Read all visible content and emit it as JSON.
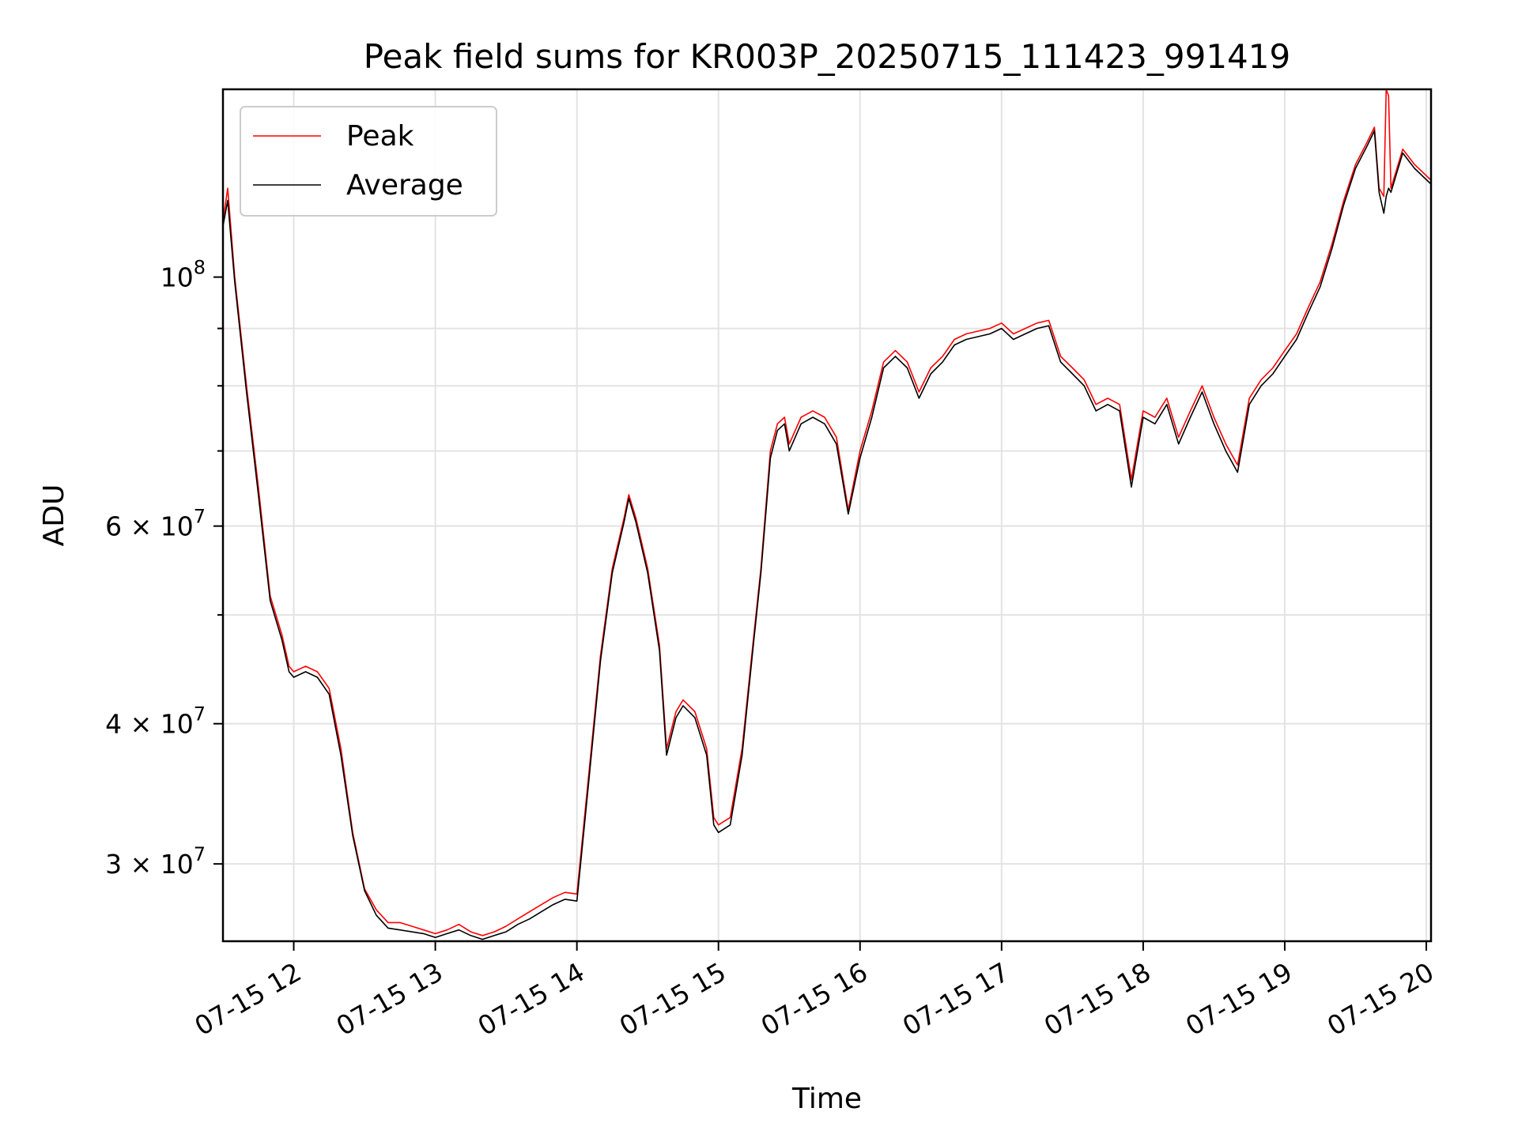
{
  "chart_data": {
    "type": "line",
    "title": "Peak field sums for KR003P_20250715_111423_991419",
    "xlabel": "Time",
    "ylabel": "ADU",
    "yscale": "log",
    "x_range": [
      "07-15 11:30",
      "07-15 20:02"
    ],
    "ylim": [
      25600000,
      147000000
    ],
    "x_ticks": [
      {
        "x": "07-15 12:00",
        "label": "07-15 12"
      },
      {
        "x": "07-15 13:00",
        "label": "07-15 13"
      },
      {
        "x": "07-15 14:00",
        "label": "07-15 14"
      },
      {
        "x": "07-15 15:00",
        "label": "07-15 15"
      },
      {
        "x": "07-15 16:00",
        "label": "07-15 16"
      },
      {
        "x": "07-15 17:00",
        "label": "07-15 17"
      },
      {
        "x": "07-15 18:00",
        "label": "07-15 18"
      },
      {
        "x": "07-15 19:00",
        "label": "07-15 19"
      },
      {
        "x": "07-15 20:00",
        "label": "07-15 20"
      }
    ],
    "y_ticks": [
      {
        "value": 30000000,
        "label": "3 × 10",
        "exp": "7"
      },
      {
        "value": 40000000,
        "label": "4 × 10",
        "exp": "7"
      },
      {
        "value": 60000000,
        "label": "6 × 10",
        "exp": "7"
      },
      {
        "value": 100000000,
        "label": "10",
        "exp": "8"
      }
    ],
    "grid": true,
    "legend_position": "top-left",
    "series": [
      {
        "name": "Peak",
        "color": "#ff0000",
        "points": [
          [
            "07-15 11:30",
            112000000
          ],
          [
            "07-15 11:32",
            120000000
          ],
          [
            "07-15 11:35",
            100000000
          ],
          [
            "07-15 11:40",
            80000000
          ],
          [
            "07-15 11:45",
            65000000
          ],
          [
            "07-15 11:50",
            52000000
          ],
          [
            "07-15 11:55",
            48000000
          ],
          [
            "07-15 11:58",
            45000000
          ],
          [
            "07-15 12:00",
            44500000
          ],
          [
            "07-15 12:05",
            45000000
          ],
          [
            "07-15 12:10",
            44500000
          ],
          [
            "07-15 12:15",
            43000000
          ],
          [
            "07-15 12:20",
            38000000
          ],
          [
            "07-15 12:25",
            32000000
          ],
          [
            "07-15 12:30",
            28500000
          ],
          [
            "07-15 12:35",
            27300000
          ],
          [
            "07-15 12:40",
            26600000
          ],
          [
            "07-15 12:45",
            26600000
          ],
          [
            "07-15 12:50",
            26400000
          ],
          [
            "07-15 12:55",
            26200000
          ],
          [
            "07-15 13:00",
            26000000
          ],
          [
            "07-15 13:05",
            26200000
          ],
          [
            "07-15 13:10",
            26500000
          ],
          [
            "07-15 13:15",
            26100000
          ],
          [
            "07-15 13:20",
            25900000
          ],
          [
            "07-15 13:25",
            26100000
          ],
          [
            "07-15 13:30",
            26400000
          ],
          [
            "07-15 13:35",
            26800000
          ],
          [
            "07-15 13:40",
            27200000
          ],
          [
            "07-15 13:45",
            27600000
          ],
          [
            "07-15 13:50",
            28000000
          ],
          [
            "07-15 13:55",
            28300000
          ],
          [
            "07-15 14:00",
            28200000
          ],
          [
            "07-15 14:05",
            36000000
          ],
          [
            "07-15 14:10",
            46000000
          ],
          [
            "07-15 14:15",
            55000000
          ],
          [
            "07-15 14:20",
            61000000
          ],
          [
            "07-15 14:22",
            64000000
          ],
          [
            "07-15 14:25",
            61000000
          ],
          [
            "07-15 14:30",
            55000000
          ],
          [
            "07-15 14:35",
            47000000
          ],
          [
            "07-15 14:38",
            38000000
          ],
          [
            "07-15 14:42",
            41000000
          ],
          [
            "07-15 14:45",
            42000000
          ],
          [
            "07-15 14:50",
            41000000
          ],
          [
            "07-15 14:55",
            38000000
          ],
          [
            "07-15 14:58",
            33000000
          ],
          [
            "07-15 15:00",
            32500000
          ],
          [
            "07-15 15:05",
            33000000
          ],
          [
            "07-15 15:10",
            38000000
          ],
          [
            "07-15 15:15",
            48000000
          ],
          [
            "07-15 15:18",
            55000000
          ],
          [
            "07-15 15:22",
            70000000
          ],
          [
            "07-15 15:25",
            74000000
          ],
          [
            "07-15 15:28",
            75000000
          ],
          [
            "07-15 15:30",
            71000000
          ],
          [
            "07-15 15:35",
            75000000
          ],
          [
            "07-15 15:40",
            76000000
          ],
          [
            "07-15 15:45",
            75000000
          ],
          [
            "07-15 15:50",
            72000000
          ],
          [
            "07-15 15:55",
            62000000
          ],
          [
            "07-15 16:00",
            70000000
          ],
          [
            "07-15 16:05",
            76000000
          ],
          [
            "07-15 16:10",
            84000000
          ],
          [
            "07-15 16:15",
            86000000
          ],
          [
            "07-15 16:20",
            84000000
          ],
          [
            "07-15 16:25",
            79000000
          ],
          [
            "07-15 16:30",
            83000000
          ],
          [
            "07-15 16:35",
            85000000
          ],
          [
            "07-15 16:40",
            88000000
          ],
          [
            "07-15 16:45",
            89000000
          ],
          [
            "07-15 16:50",
            89500000
          ],
          [
            "07-15 16:55",
            90000000
          ],
          [
            "07-15 17:00",
            91000000
          ],
          [
            "07-15 17:05",
            89000000
          ],
          [
            "07-15 17:10",
            90000000
          ],
          [
            "07-15 17:15",
            91000000
          ],
          [
            "07-15 17:20",
            91500000
          ],
          [
            "07-15 17:25",
            85000000
          ],
          [
            "07-15 17:30",
            83000000
          ],
          [
            "07-15 17:35",
            81000000
          ],
          [
            "07-15 17:40",
            77000000
          ],
          [
            "07-15 17:45",
            78000000
          ],
          [
            "07-15 17:50",
            77000000
          ],
          [
            "07-15 17:55",
            66000000
          ],
          [
            "07-15 18:00",
            76000000
          ],
          [
            "07-15 18:05",
            75000000
          ],
          [
            "07-15 18:10",
            78000000
          ],
          [
            "07-15 18:15",
            72000000
          ],
          [
            "07-15 18:20",
            76000000
          ],
          [
            "07-15 18:25",
            80000000
          ],
          [
            "07-15 18:30",
            75000000
          ],
          [
            "07-15 18:35",
            71000000
          ],
          [
            "07-15 18:40",
            68000000
          ],
          [
            "07-15 18:45",
            78000000
          ],
          [
            "07-15 18:50",
            81000000
          ],
          [
            "07-15 18:55",
            83000000
          ],
          [
            "07-15 19:00",
            86000000
          ],
          [
            "07-15 19:05",
            89000000
          ],
          [
            "07-15 19:10",
            94000000
          ],
          [
            "07-15 19:15",
            99000000
          ],
          [
            "07-15 19:20",
            107000000
          ],
          [
            "07-15 19:25",
            117000000
          ],
          [
            "07-15 19:30",
            126000000
          ],
          [
            "07-15 19:35",
            132000000
          ],
          [
            "07-15 19:38",
            136000000
          ],
          [
            "07-15 19:40",
            120000000
          ],
          [
            "07-15 19:42",
            118000000
          ],
          [
            "07-15 19:43",
            147000000
          ],
          [
            "07-15 19:44",
            145000000
          ],
          [
            "07-15 19:45",
            120000000
          ],
          [
            "07-15 19:50",
            130000000
          ],
          [
            "07-15 19:55",
            126000000
          ],
          [
            "07-15 20:02",
            122000000
          ]
        ]
      },
      {
        "name": "Average",
        "color": "#000000",
        "points": [
          [
            "07-15 11:30",
            111000000
          ],
          [
            "07-15 11:32",
            117000000
          ],
          [
            "07-15 11:35",
            99000000
          ],
          [
            "07-15 11:40",
            79000000
          ],
          [
            "07-15 11:45",
            64000000
          ],
          [
            "07-15 11:50",
            51500000
          ],
          [
            "07-15 11:55",
            47500000
          ],
          [
            "07-15 11:58",
            44500000
          ],
          [
            "07-15 12:00",
            44000000
          ],
          [
            "07-15 12:05",
            44500000
          ],
          [
            "07-15 12:10",
            44000000
          ],
          [
            "07-15 12:15",
            42500000
          ],
          [
            "07-15 12:20",
            37500000
          ],
          [
            "07-15 12:25",
            31800000
          ],
          [
            "07-15 12:30",
            28400000
          ],
          [
            "07-15 12:35",
            27000000
          ],
          [
            "07-15 12:40",
            26300000
          ],
          [
            "07-15 12:45",
            26200000
          ],
          [
            "07-15 12:50",
            26100000
          ],
          [
            "07-15 12:55",
            26000000
          ],
          [
            "07-15 13:00",
            25800000
          ],
          [
            "07-15 13:05",
            26000000
          ],
          [
            "07-15 13:10",
            26200000
          ],
          [
            "07-15 13:15",
            25900000
          ],
          [
            "07-15 13:20",
            25700000
          ],
          [
            "07-15 13:25",
            25900000
          ],
          [
            "07-15 13:30",
            26100000
          ],
          [
            "07-15 13:35",
            26500000
          ],
          [
            "07-15 13:40",
            26800000
          ],
          [
            "07-15 13:45",
            27200000
          ],
          [
            "07-15 13:50",
            27600000
          ],
          [
            "07-15 13:55",
            27900000
          ],
          [
            "07-15 14:00",
            27800000
          ],
          [
            "07-15 14:05",
            35500000
          ],
          [
            "07-15 14:10",
            45500000
          ],
          [
            "07-15 14:15",
            54500000
          ],
          [
            "07-15 14:20",
            60500000
          ],
          [
            "07-15 14:22",
            63500000
          ],
          [
            "07-15 14:25",
            60500000
          ],
          [
            "07-15 14:30",
            54500000
          ],
          [
            "07-15 14:35",
            46500000
          ],
          [
            "07-15 14:38",
            37500000
          ],
          [
            "07-15 14:42",
            40500000
          ],
          [
            "07-15 14:45",
            41500000
          ],
          [
            "07-15 14:50",
            40500000
          ],
          [
            "07-15 14:55",
            37500000
          ],
          [
            "07-15 14:58",
            32500000
          ],
          [
            "07-15 15:00",
            32000000
          ],
          [
            "07-15 15:05",
            32500000
          ],
          [
            "07-15 15:10",
            37500000
          ],
          [
            "07-15 15:15",
            47500000
          ],
          [
            "07-15 15:18",
            54500000
          ],
          [
            "07-15 15:22",
            69000000
          ],
          [
            "07-15 15:25",
            73000000
          ],
          [
            "07-15 15:28",
            74000000
          ],
          [
            "07-15 15:30",
            70000000
          ],
          [
            "07-15 15:35",
            74000000
          ],
          [
            "07-15 15:40",
            75000000
          ],
          [
            "07-15 15:45",
            74000000
          ],
          [
            "07-15 15:50",
            71000000
          ],
          [
            "07-15 15:55",
            61500000
          ],
          [
            "07-15 16:00",
            69000000
          ],
          [
            "07-15 16:05",
            75000000
          ],
          [
            "07-15 16:10",
            83000000
          ],
          [
            "07-15 16:15",
            85000000
          ],
          [
            "07-15 16:20",
            83000000
          ],
          [
            "07-15 16:25",
            78000000
          ],
          [
            "07-15 16:30",
            82000000
          ],
          [
            "07-15 16:35",
            84000000
          ],
          [
            "07-15 16:40",
            87000000
          ],
          [
            "07-15 16:45",
            88000000
          ],
          [
            "07-15 16:50",
            88500000
          ],
          [
            "07-15 16:55",
            89000000
          ],
          [
            "07-15 17:00",
            90000000
          ],
          [
            "07-15 17:05",
            88000000
          ],
          [
            "07-15 17:10",
            89000000
          ],
          [
            "07-15 17:15",
            90000000
          ],
          [
            "07-15 17:20",
            90500000
          ],
          [
            "07-15 17:25",
            84000000
          ],
          [
            "07-15 17:30",
            82000000
          ],
          [
            "07-15 17:35",
            80000000
          ],
          [
            "07-15 17:40",
            76000000
          ],
          [
            "07-15 17:45",
            77000000
          ],
          [
            "07-15 17:50",
            76000000
          ],
          [
            "07-15 17:55",
            65000000
          ],
          [
            "07-15 18:00",
            75000000
          ],
          [
            "07-15 18:05",
            74000000
          ],
          [
            "07-15 18:10",
            77000000
          ],
          [
            "07-15 18:15",
            71000000
          ],
          [
            "07-15 18:20",
            75000000
          ],
          [
            "07-15 18:25",
            79000000
          ],
          [
            "07-15 18:30",
            74000000
          ],
          [
            "07-15 18:35",
            70000000
          ],
          [
            "07-15 18:40",
            67000000
          ],
          [
            "07-15 18:45",
            77000000
          ],
          [
            "07-15 18:50",
            80000000
          ],
          [
            "07-15 18:55",
            82000000
          ],
          [
            "07-15 19:00",
            85000000
          ],
          [
            "07-15 19:05",
            88000000
          ],
          [
            "07-15 19:10",
            93000000
          ],
          [
            "07-15 19:15",
            98000000
          ],
          [
            "07-15 19:20",
            106000000
          ],
          [
            "07-15 19:25",
            116000000
          ],
          [
            "07-15 19:30",
            125000000
          ],
          [
            "07-15 19:35",
            131000000
          ],
          [
            "07-15 19:38",
            135000000
          ],
          [
            "07-15 19:40",
            119000000
          ],
          [
            "07-15 19:42",
            114000000
          ],
          [
            "07-15 19:43",
            118000000
          ],
          [
            "07-15 19:44",
            120000000
          ],
          [
            "07-15 19:45",
            119000000
          ],
          [
            "07-15 19:50",
            129000000
          ],
          [
            "07-15 19:55",
            125000000
          ],
          [
            "07-15 20:02",
            121000000
          ]
        ]
      }
    ]
  }
}
